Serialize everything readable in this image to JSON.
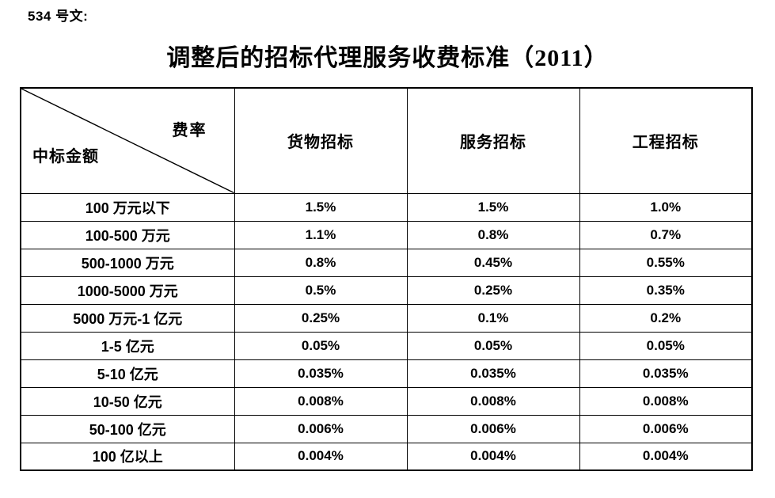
{
  "page": {
    "doc_label": "534 号文:",
    "title": "调整后的招标代理服务收费标准（2011）"
  },
  "table": {
    "corner": {
      "top_right": "费率",
      "bottom_left": "中标金额"
    },
    "columns": [
      "货物招标",
      "服务招标",
      "工程招标"
    ],
    "rows": [
      {
        "label": "100 万元以下",
        "values": [
          "1.5%",
          "1.5%",
          "1.0%"
        ]
      },
      {
        "label": "100-500 万元",
        "values": [
          "1.1%",
          "0.8%",
          "0.7%"
        ]
      },
      {
        "label": "500-1000 万元",
        "values": [
          "0.8%",
          "0.45%",
          "0.55%"
        ]
      },
      {
        "label": "1000-5000 万元",
        "values": [
          "0.5%",
          "0.25%",
          "0.35%"
        ]
      },
      {
        "label": "5000 万元-1 亿元",
        "values": [
          "0.25%",
          "0.1%",
          "0.2%"
        ]
      },
      {
        "label": "1-5 亿元",
        "values": [
          "0.05%",
          "0.05%",
          "0.05%"
        ]
      },
      {
        "label": "5-10 亿元",
        "values": [
          "0.035%",
          "0.035%",
          "0.035%"
        ]
      },
      {
        "label": "10-50 亿元",
        "values": [
          "0.008%",
          "0.008%",
          "0.008%"
        ]
      },
      {
        "label": "50-100 亿元",
        "values": [
          "0.006%",
          "0.006%",
          "0.006%"
        ]
      },
      {
        "label": "100 亿以上",
        "values": [
          "0.004%",
          "0.004%",
          "0.004%"
        ]
      }
    ]
  },
  "colors": {
    "text": "#000000",
    "border": "#000000",
    "background": "#ffffff"
  }
}
